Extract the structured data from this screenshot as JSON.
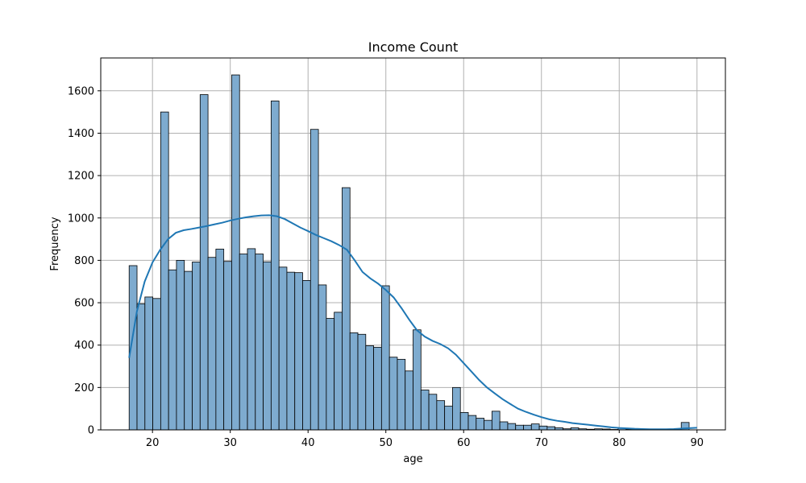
{
  "chart_data": {
    "type": "histogram",
    "title": "Income Count",
    "xlabel": "age",
    "ylabel": "Frequency",
    "xlim": [
      13.35,
      93.65
    ],
    "ylim": [
      0,
      1755
    ],
    "xticks": [
      20,
      30,
      40,
      50,
      60,
      70,
      80,
      90
    ],
    "yticks": [
      0,
      200,
      400,
      600,
      800,
      1000,
      1200,
      1400,
      1600
    ],
    "grid": true,
    "bin_start": 17,
    "bin_width": 1.0139,
    "bar_color": "#7eabcf",
    "bar_edge_color": "#000000",
    "kde_color": "#1f77b4",
    "counts": [
      775,
      595,
      627,
      620,
      1500,
      755,
      800,
      748,
      792,
      1582,
      814,
      853,
      795,
      1675,
      830,
      855,
      830,
      793,
      1552,
      768,
      744,
      742,
      705,
      1418,
      684,
      526,
      555,
      1143,
      458,
      451,
      397,
      390,
      680,
      343,
      333,
      278,
      472,
      188,
      168,
      138,
      112,
      200,
      82,
      68,
      55,
      45,
      88,
      38,
      30,
      22,
      22,
      28,
      18,
      15,
      10,
      5,
      10,
      5,
      3,
      5,
      4,
      2,
      8,
      3,
      2,
      2,
      2,
      2,
      2,
      2,
      35,
      0
    ],
    "kde": {
      "x": [
        17,
        18,
        19,
        20,
        21,
        22,
        23,
        24,
        25,
        26,
        27,
        28,
        29,
        30,
        31,
        32,
        33,
        34,
        35,
        36,
        37,
        38,
        39,
        40,
        41,
        42,
        43,
        44,
        45,
        46,
        47,
        48,
        49,
        50,
        51,
        52,
        53,
        54,
        55,
        56,
        57,
        58,
        59,
        60,
        61,
        62,
        63,
        64,
        65,
        66,
        67,
        68,
        69,
        70,
        71,
        72,
        73,
        74,
        75,
        76,
        77,
        78,
        79,
        80,
        81,
        82,
        83,
        84,
        85,
        86,
        87,
        88,
        89,
        90
      ],
      "y": [
        340,
        560,
        700,
        790,
        850,
        900,
        930,
        942,
        948,
        955,
        962,
        970,
        978,
        988,
        996,
        1003,
        1008,
        1012,
        1013,
        1008,
        995,
        975,
        955,
        938,
        920,
        905,
        890,
        872,
        850,
        800,
        745,
        715,
        690,
        660,
        625,
        575,
        520,
        470,
        440,
        420,
        405,
        385,
        355,
        315,
        275,
        235,
        200,
        172,
        145,
        122,
        100,
        85,
        72,
        60,
        50,
        43,
        38,
        32,
        28,
        24,
        20,
        16,
        12,
        9,
        7,
        5,
        4,
        3,
        3,
        3,
        4,
        6,
        8,
        10
      ]
    }
  }
}
